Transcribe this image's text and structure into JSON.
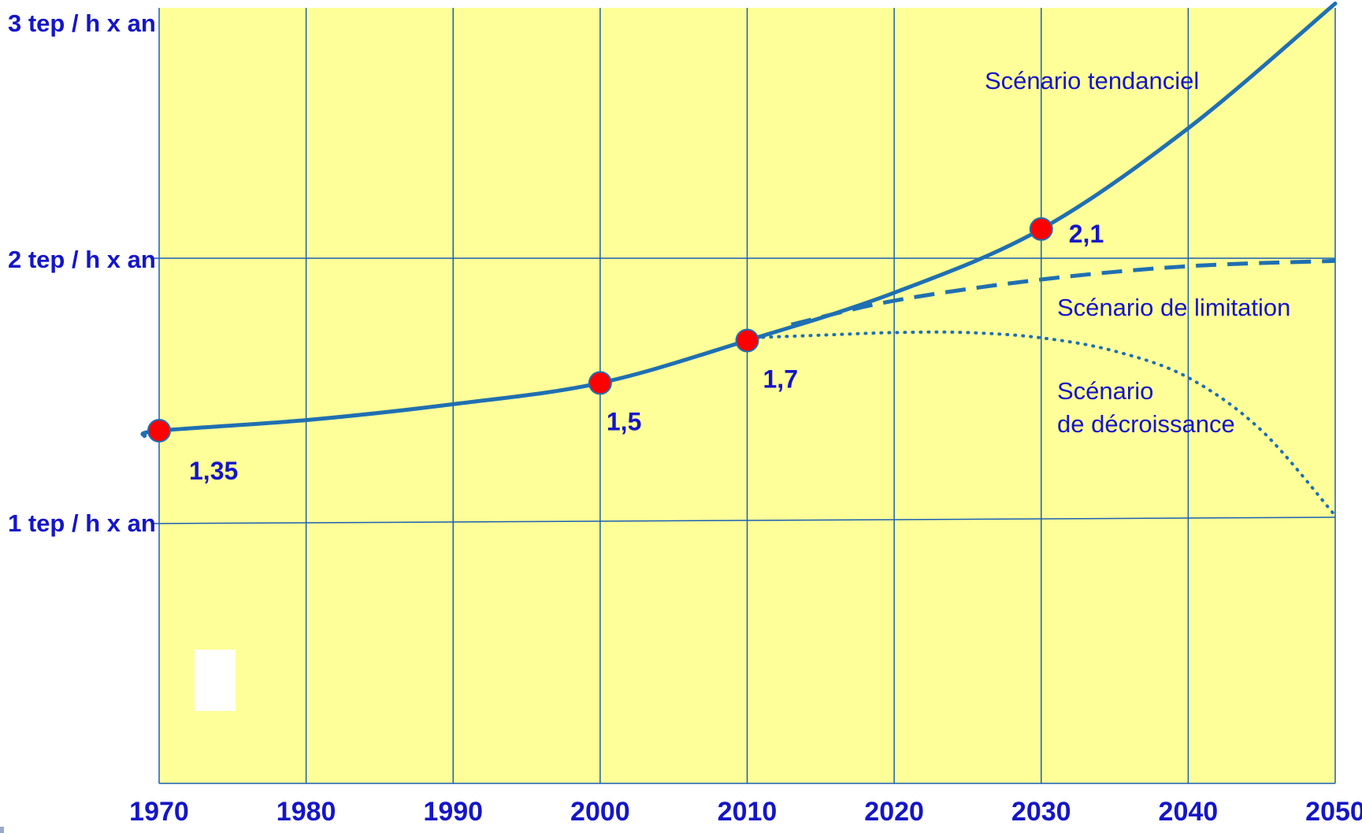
{
  "chart_data": {
    "type": "line",
    "xlabel": "",
    "ylabel": "",
    "xlim": [
      1970,
      2050
    ],
    "ylim": [
      0,
      3
    ],
    "x_ticks": [
      "1970",
      "1980",
      "1990",
      "2000",
      "2010",
      "2020",
      "2030",
      "2040",
      "2050"
    ],
    "y_ticks": [
      {
        "value": 1,
        "label": "1 tep / h x an"
      },
      {
        "value": 2,
        "label": "2 tep / h x an"
      },
      {
        "value": 3,
        "label": "3 tep / h x an"
      }
    ],
    "grid": true,
    "colors": {
      "plot_background": "#ffff99",
      "grid": "#1a5fb4",
      "series": "#1f6fb2",
      "marker": "#ff0000",
      "text": "#1515c8"
    },
    "series": [
      {
        "name": "Scénario tendanciel",
        "style": "solid",
        "x": [
          1969,
          1970,
          1980,
          1990,
          2000,
          2010,
          2020,
          2030,
          2040,
          2050
        ],
        "y": [
          1.33,
          1.35,
          1.39,
          1.45,
          1.53,
          1.69,
          1.87,
          2.11,
          2.49,
          2.96
        ]
      },
      {
        "name": "Scénario de limitation",
        "style": "dashed",
        "x": [
          2013,
          2020,
          2030,
          2040,
          2050
        ],
        "y": [
          1.75,
          1.84,
          1.92,
          1.97,
          1.99
        ]
      },
      {
        "name": "Scénario\nde décroissance",
        "style": "dotted",
        "x": [
          2010,
          2015,
          2020,
          2025,
          2030,
          2035,
          2040,
          2045,
          2050
        ],
        "y": [
          1.7,
          1.71,
          1.72,
          1.72,
          1.7,
          1.65,
          1.55,
          1.35,
          1.03
        ]
      }
    ],
    "points": [
      {
        "x": 1970,
        "y": 1.35,
        "label": "1,35"
      },
      {
        "x": 2000,
        "y": 1.53,
        "label": "1,5"
      },
      {
        "x": 2010,
        "y": 1.69,
        "label": "1,7"
      },
      {
        "x": 2030,
        "y": 2.11,
        "label": "2,1"
      }
    ],
    "annotations": [
      "Scénario tendanciel",
      "Scénario de limitation",
      "Scénario\nde décroissance"
    ]
  }
}
